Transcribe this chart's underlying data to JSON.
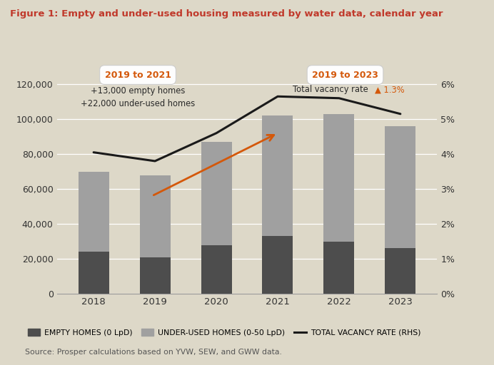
{
  "title": "Figure 1: Empty and under-used housing measured by water data, calendar year",
  "source": "Source: Prosper calculations based on YVW, SEW, and GWW data.",
  "years": [
    2018,
    2019,
    2020,
    2021,
    2022,
    2023
  ],
  "empty_homes": [
    24000,
    21000,
    28000,
    33000,
    30000,
    26000
  ],
  "underused_homes": [
    46000,
    47000,
    59000,
    69000,
    73000,
    70000
  ],
  "vacancy_rate": [
    4.05,
    3.8,
    4.6,
    5.65,
    5.6,
    5.15
  ],
  "bg_color": "#ddd8c8",
  "bar_color_empty": "#4d4d4d",
  "bar_color_underused": "#a0a0a0",
  "line_color": "#1a1a1a",
  "title_color": "#c0392b",
  "orange_color": "#d4580a",
  "ylim_left": [
    0,
    140000
  ],
  "ylim_right": [
    0,
    7
  ],
  "yticks_left": [
    0,
    20000,
    40000,
    60000,
    80000,
    100000,
    120000
  ],
  "yticks_right": [
    0,
    1,
    2,
    3,
    4,
    5,
    6
  ],
  "legend_labels": [
    "EMPTY HOMES (0 LpD)",
    "UNDER-USED HOMES (0-50 LpD)",
    "TOTAL VACANCY RATE (RHS)"
  ]
}
